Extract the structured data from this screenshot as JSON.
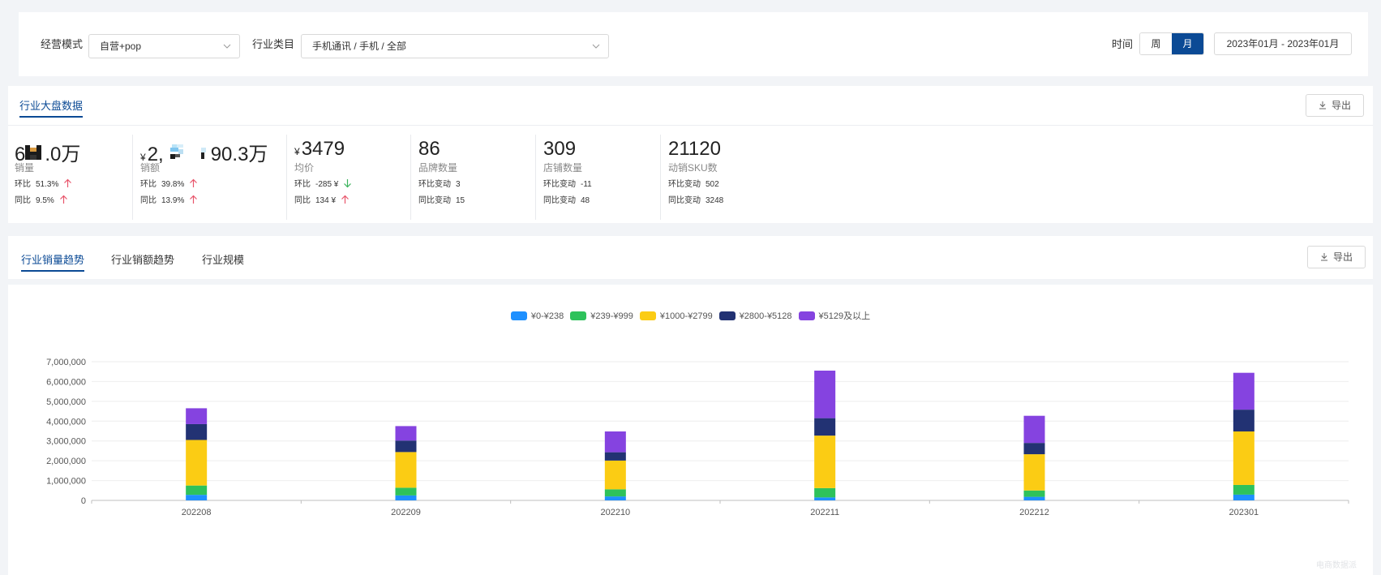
{
  "filters": {
    "mode_label": "经营模式",
    "mode_value": "自营+pop",
    "category_label": "行业类目",
    "category_value": "手机通讯 / 手机 / 全部",
    "time_label": "时间",
    "period_options": [
      "周",
      "月"
    ],
    "period_selected": "月",
    "date_range": "2023年01月 - 2023年01月"
  },
  "overview": {
    "tab": "行业大盘数据",
    "export_label": "导出",
    "kpis": [
      {
        "prefix": "6",
        "suffix": ".0万",
        "masked": true,
        "label": "销量",
        "row1": {
          "key": "环比",
          "value": "51.3%",
          "trend": "up"
        },
        "row2": {
          "key": "同比",
          "value": "9.5%",
          "trend": "up"
        }
      },
      {
        "currency": "¥",
        "prefix": "2,",
        "suffix": "90.3万",
        "masked": true,
        "label": "销额",
        "row1": {
          "key": "环比",
          "value": "39.8%",
          "trend": "up"
        },
        "row2": {
          "key": "同比",
          "value": "13.9%",
          "trend": "up"
        }
      },
      {
        "currency": "¥",
        "prefix": "3479",
        "suffix": "",
        "masked": false,
        "label": "均价",
        "row1": {
          "key": "环比",
          "value": "-285 ¥",
          "trend": "down"
        },
        "row2": {
          "key": "同比",
          "value": "134 ¥",
          "trend": "up"
        }
      },
      {
        "prefix": "86",
        "suffix": "",
        "masked": false,
        "label": "品牌数量",
        "row1": {
          "key": "环比变动",
          "value": "3",
          "trend": ""
        },
        "row2": {
          "key": "同比变动",
          "value": "15",
          "trend": ""
        }
      },
      {
        "prefix": "309",
        "suffix": "",
        "masked": false,
        "label": "店铺数量",
        "row1": {
          "key": "环比变动",
          "value": "-11",
          "trend": ""
        },
        "row2": {
          "key": "同比变动",
          "value": "48",
          "trend": ""
        }
      },
      {
        "prefix": "21120",
        "suffix": "",
        "masked": false,
        "label": "动销SKU数",
        "row1": {
          "key": "环比变动",
          "value": "502",
          "trend": ""
        },
        "row2": {
          "key": "同比变动",
          "value": "3248",
          "trend": ""
        }
      }
    ]
  },
  "trend_tabs": {
    "tabs": [
      "行业销量趋势",
      "行业销额趋势",
      "行业规模"
    ],
    "active": 0,
    "export_label": "导出"
  },
  "colors": {
    "accent": "#0b4a95",
    "up": "#e8556b",
    "down": "#3bb35c"
  },
  "watermark": "电商数据派",
  "chart_data": {
    "type": "bar",
    "stacked": true,
    "categories": [
      "202208",
      "202209",
      "202210",
      "202211",
      "202212",
      "202301"
    ],
    "series": [
      {
        "name": "¥0-¥238",
        "color": "#1e90ff",
        "values": [
          280000,
          250000,
          200000,
          150000,
          180000,
          290000
        ]
      },
      {
        "name": "¥239-¥999",
        "color": "#2ec25b",
        "values": [
          470000,
          390000,
          360000,
          470000,
          320000,
          490000
        ]
      },
      {
        "name": "¥1000-¥2799",
        "color": "#fbcc14",
        "values": [
          2300000,
          1800000,
          1450000,
          2650000,
          1830000,
          2700000
        ]
      },
      {
        "name": "¥2800-¥5128",
        "color": "#223273",
        "values": [
          800000,
          580000,
          420000,
          880000,
          570000,
          1100000
        ]
      },
      {
        "name": "¥5129及以上",
        "color": "#8543e0",
        "values": [
          800000,
          730000,
          1050000,
          2400000,
          1370000,
          1860000
        ]
      }
    ],
    "yticks": [
      "0",
      "1,000,000",
      "2,000,000",
      "3,000,000",
      "4,000,000",
      "5,000,000",
      "6,000,000",
      "7,000,000"
    ],
    "ylim": [
      0,
      7000000
    ],
    "grid": true,
    "legend": "top-center"
  }
}
